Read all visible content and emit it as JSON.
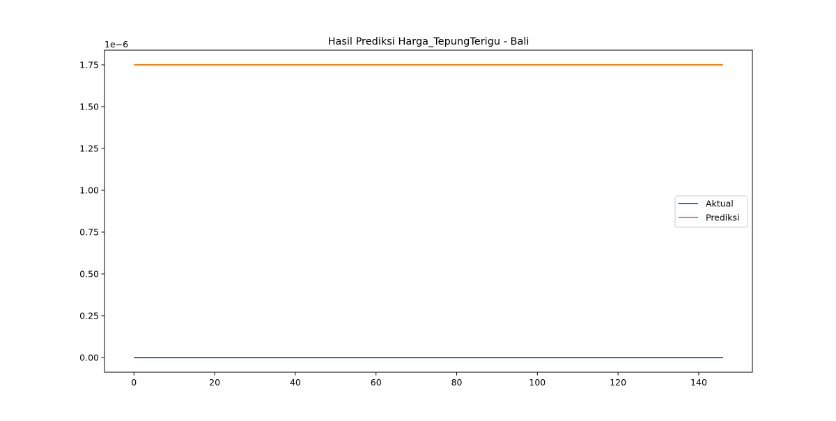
{
  "chart_data": {
    "type": "line",
    "title": "Hasil Prediksi Harga_TepungTerigu - Bali",
    "xlabel": "",
    "ylabel": "",
    "y_offset_text": "1e−6",
    "xlim": [
      -7.3,
      153.3
    ],
    "ylim": [
      -0.0875,
      1.8375
    ],
    "x_ticks": [
      0,
      20,
      40,
      60,
      80,
      100,
      120,
      140
    ],
    "x_tick_labels": [
      "0",
      "20",
      "40",
      "60",
      "80",
      "100",
      "120",
      "140"
    ],
    "y_ticks": [
      0.0,
      0.25,
      0.5,
      0.75,
      1.0,
      1.25,
      1.5,
      1.75
    ],
    "y_tick_labels": [
      "0.00",
      "0.25",
      "0.50",
      "0.75",
      "1.00",
      "1.25",
      "1.50",
      "1.75"
    ],
    "grid": false,
    "legend_position": "center-right",
    "series": [
      {
        "name": "Aktual",
        "color": "#1f77b4",
        "x": [
          0,
          146
        ],
        "y": [
          0.0,
          0.0
        ]
      },
      {
        "name": "Prediksi",
        "color": "#ff7f0e",
        "x": [
          0,
          146
        ],
        "y": [
          1.75,
          1.75
        ]
      }
    ]
  }
}
